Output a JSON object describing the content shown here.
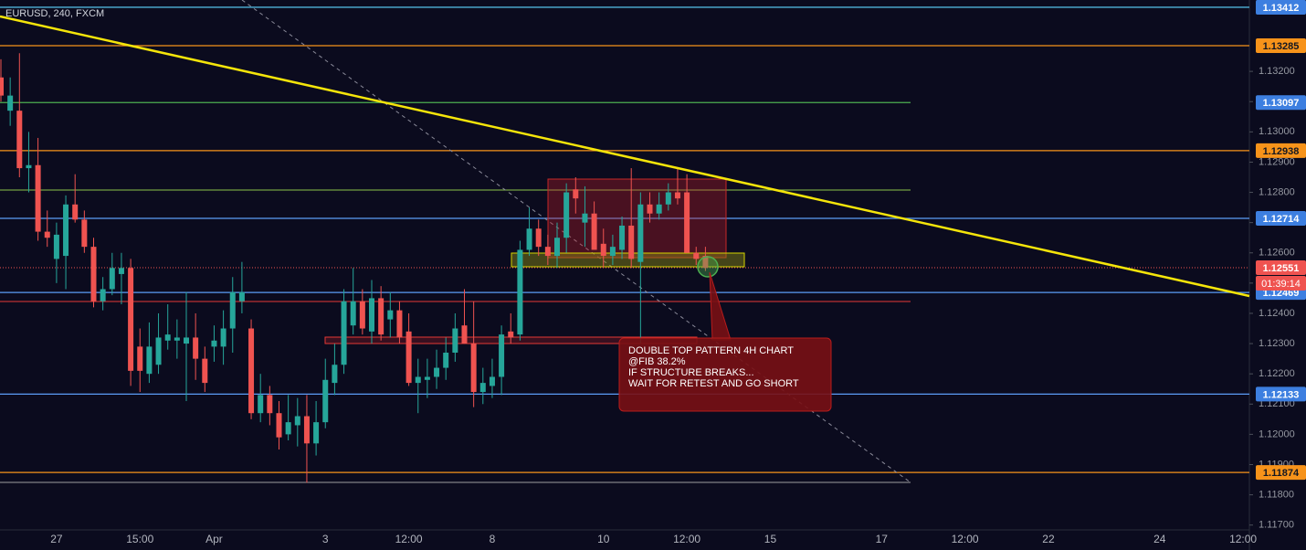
{
  "chart_data": {
    "type": "candlestick",
    "title": "EURUSD, 240, FXCM",
    "up_color": "#26a69a",
    "down_color": "#ef5350",
    "categories": [
      null,
      null,
      null,
      null,
      null,
      null,
      "27",
      null,
      null,
      null,
      null,
      null,
      null,
      null,
      null,
      "15:00",
      null,
      null,
      null,
      null,
      null,
      null,
      null,
      "Apr",
      null,
      null,
      null,
      null,
      null,
      null,
      null,
      null,
      null,
      null,
      null,
      "3",
      null,
      null,
      null,
      null,
      null,
      null,
      null,
      null,
      "12:00",
      null,
      null,
      null,
      null,
      null,
      null,
      null,
      null,
      "8",
      null,
      null,
      null,
      null,
      null,
      null,
      null,
      null,
      null,
      null,
      null,
      "10",
      null,
      null,
      null,
      null,
      null,
      null,
      null,
      null,
      "12:00",
      null,
      null,
      null,
      null,
      null,
      null,
      null,
      null,
      "15",
      null,
      null,
      null,
      null,
      null,
      null,
      null,
      null,
      null,
      null,
      null,
      "17",
      null,
      null,
      null,
      null,
      null,
      null,
      null,
      null,
      "12:00",
      null,
      null,
      null,
      null,
      null,
      null,
      null,
      null,
      "22",
      null,
      null,
      null,
      null,
      null,
      null,
      null,
      null,
      null,
      null,
      null,
      "24",
      null,
      null,
      null,
      null,
      null,
      null,
      null,
      null,
      "12:00"
    ],
    "open": [
      1.1318,
      1.1307,
      1.1307,
      1.1288,
      1.1289,
      1.1267,
      1.1258,
      1.1259,
      1.1276,
      1.1271,
      1.1262,
      1.1244,
      1.1248,
      1.1253,
      1.1255,
      1.1229,
      1.122,
      1.1223,
      1.1231,
      1.1231,
      1.123,
      1.1232,
      1.1225,
      1.1229,
      1.1229,
      1.1235,
      1.1244,
      1.1235,
      1.1207,
      1.1213,
      1.1207,
      1.12,
      1.1203,
      1.1206,
      1.1197,
      1.1204,
      1.1217,
      1.1223,
      1.1236,
      1.1244,
      1.1234,
      1.1245,
      1.1238,
      1.1241,
      1.1234,
      1.1217,
      1.1218,
      1.1219,
      1.1222,
      1.1227,
      1.1236,
      1.123,
      1.1214,
      1.1216,
      1.1219,
      1.1234,
      1.1233,
      1.1261,
      1.1268,
      1.1262,
      1.1259,
      1.1265,
      1.1281,
      1.127,
      1.1273,
      1.1263,
      1.1259,
      1.1261,
      1.1269,
      1.1257,
      1.1276,
      1.1273,
      1.1276,
      1.128,
      1.128,
      1.126,
      1.1259,
      null,
      null,
      null,
      null,
      null,
      null,
      null,
      null,
      null,
      null,
      null,
      null,
      null,
      null,
      null,
      null,
      null,
      null,
      null,
      null,
      null,
      null,
      null,
      null,
      null,
      null,
      null,
      null,
      null,
      null,
      null,
      null,
      null,
      null,
      null,
      null,
      null,
      null,
      null,
      null,
      null,
      null,
      null,
      null,
      null,
      null,
      null,
      null,
      null,
      null,
      null,
      null,
      null,
      null,
      null,
      null,
      null,
      null
    ],
    "high": [
      1.1324,
      1.1318,
      1.1326,
      1.13,
      1.1298,
      1.1274,
      1.127,
      1.1279,
      1.1286,
      1.1274,
      1.1265,
      1.1252,
      1.126,
      1.126,
      1.1258,
      1.1235,
      1.1237,
      1.124,
      1.1243,
      1.1238,
      1.1247,
      1.124,
      1.1229,
      1.1236,
      1.1241,
      1.1252,
      1.1257,
      1.1238,
      1.122,
      1.1216,
      1.1211,
      1.1213,
      1.1212,
      1.1213,
      1.1211,
      1.1225,
      1.123,
      1.1248,
      1.1255,
      1.1248,
      1.1251,
      1.1249,
      1.1247,
      1.1244,
      1.124,
      1.1225,
      1.1225,
      1.1228,
      1.1232,
      1.124,
      1.1248,
      1.1244,
      1.1222,
      1.1225,
      1.1236,
      1.124,
      1.1264,
      1.1275,
      1.1271,
      1.1266,
      1.127,
      1.1283,
      1.1285,
      1.1282,
      1.1277,
      1.1268,
      1.1266,
      1.1272,
      1.1288,
      1.128,
      1.128,
      1.128,
      1.1283,
      1.1288,
      1.1286,
      1.1262,
      1.1262,
      null,
      null,
      null,
      null,
      null,
      null,
      null,
      null,
      null,
      null,
      null,
      null,
      null,
      null,
      null,
      null,
      null,
      null,
      null,
      null,
      null,
      null,
      null,
      null,
      null,
      null,
      null,
      null,
      null,
      null,
      null,
      null,
      null,
      null,
      null,
      null,
      null,
      null,
      null,
      null,
      null,
      null,
      null,
      null,
      null,
      null,
      null,
      null,
      null,
      null,
      null,
      null,
      null,
      null,
      null,
      null,
      null,
      null
    ],
    "low": [
      1.131,
      1.1302,
      1.1285,
      1.128,
      1.1264,
      1.1262,
      1.125,
      1.1248,
      1.127,
      1.126,
      1.1242,
      1.1241,
      1.1246,
      1.1243,
      1.1216,
      1.1214,
      1.1217,
      1.122,
      1.1228,
      1.1225,
      1.1211,
      1.1218,
      1.1214,
      1.1224,
      1.1223,
      1.1227,
      1.124,
      1.1205,
      1.1204,
      1.1203,
      1.1195,
      1.1198,
      1.1196,
      1.1184,
      1.1193,
      1.1202,
      1.1213,
      1.122,
      1.1233,
      1.1233,
      1.123,
      1.1231,
      1.1232,
      1.123,
      1.1216,
      1.1207,
      1.1212,
      1.1215,
      1.1218,
      1.1224,
      1.123,
      1.1209,
      1.121,
      1.1212,
      1.1213,
      1.123,
      1.1231,
      1.1259,
      1.1259,
      1.1256,
      1.1255,
      1.126,
      1.1273,
      1.1262,
      1.1262,
      1.1255,
      1.1256,
      1.1258,
      1.1255,
      1.123,
      1.127,
      1.1271,
      1.1274,
      1.1276,
      1.126,
      1.1256,
      1.1254,
      null,
      null,
      null,
      null,
      null,
      null,
      null,
      null,
      null,
      null,
      null,
      null,
      null,
      null,
      null,
      null,
      null,
      null,
      null,
      null,
      null,
      null,
      null,
      null,
      null,
      null,
      null,
      null,
      null,
      null,
      null,
      null,
      null,
      null,
      null,
      null,
      null,
      null,
      null,
      null,
      null,
      null,
      null,
      null,
      null,
      null,
      null,
      null,
      null,
      null,
      null,
      null,
      null,
      null,
      null,
      null,
      null,
      null
    ],
    "close": [
      1.1312,
      1.1312,
      1.1288,
      1.1289,
      1.1267,
      1.1265,
      1.1266,
      1.1276,
      1.1271,
      1.1262,
      1.1244,
      1.1248,
      1.1255,
      1.1255,
      1.1221,
      1.1221,
      1.1229,
      1.1232,
      1.1233,
      1.1232,
      1.1232,
      1.1225,
      1.1217,
      1.1231,
      1.1235,
      1.1247,
      1.1247,
      1.1207,
      1.1213,
      1.1207,
      1.1199,
      1.1204,
      1.1206,
      1.1197,
      1.1204,
      1.1218,
      1.1223,
      1.1244,
      1.1244,
      1.1235,
      1.1245,
      1.1233,
      1.1241,
      1.1232,
      1.1217,
      1.1219,
      1.1219,
      1.1222,
      1.1227,
      1.1235,
      1.123,
      1.1214,
      1.1217,
      1.1219,
      1.1233,
      1.1232,
      1.1261,
      1.1268,
      1.1262,
      1.1259,
      1.1265,
      1.128,
      1.1278,
      1.1273,
      1.1261,
      1.1259,
      1.1262,
      1.1269,
      1.1258,
      1.1276,
      1.1273,
      1.1276,
      1.128,
      1.1278,
      1.126,
      1.1258,
      1.1255,
      null,
      null,
      null,
      null,
      null,
      null,
      null,
      null,
      null,
      null,
      null,
      null,
      null,
      null,
      null,
      null,
      null,
      null,
      null,
      null,
      null,
      null,
      null,
      null,
      null,
      null,
      null,
      null,
      null,
      null,
      null,
      null,
      null,
      null,
      null,
      null,
      null,
      null,
      null,
      null,
      null,
      null,
      null,
      null,
      null,
      null,
      null,
      null,
      null,
      null,
      null,
      null,
      null,
      null,
      null,
      null,
      null,
      null
    ],
    "ylim": [
      1.11684,
      1.13436
    ],
    "yticks": [
      {
        "value": 1.117,
        "label": "1.11700"
      },
      {
        "value": 1.118,
        "label": "1.11800"
      },
      {
        "value": 1.119,
        "label": "1.11900"
      },
      {
        "value": 1.12,
        "label": "1.12000"
      },
      {
        "value": 1.121,
        "label": "1.12100"
      },
      {
        "value": 1.122,
        "label": "1.12200"
      },
      {
        "value": 1.123,
        "label": "1.12300"
      },
      {
        "value": 1.124,
        "label": "1.12400"
      },
      {
        "value": 1.125,
        "label": "1.12500"
      },
      {
        "value": 1.126,
        "label": "1.12600"
      },
      {
        "value": 1.127,
        "label": "1.12700"
      },
      {
        "value": 1.128,
        "label": "1.12800"
      },
      {
        "value": 1.129,
        "label": "1.12900"
      },
      {
        "value": 1.13,
        "label": "1.13000"
      },
      {
        "value": 1.131,
        "label": "1.13100"
      },
      {
        "value": 1.132,
        "label": "1.13200"
      }
    ],
    "levels": [
      {
        "value": 1.13412,
        "color": "#4fb3d9",
        "label_color": "#3d7fe0",
        "full": true
      },
      {
        "value": 1.13285,
        "color": "#f7931a",
        "label_color": "#f7931a",
        "full": true
      },
      {
        "value": 1.13097,
        "color": "#4caf50",
        "label_color": "#3d7fe0",
        "full": false
      },
      {
        "value": 1.12938,
        "color": "#f7931a",
        "label_color": "#f7931a",
        "full": true
      },
      {
        "value": 1.12714,
        "color": "#5b9cf6",
        "label_color": "#3d7fe0",
        "full": true
      },
      {
        "value": 1.12469,
        "color": "#5b9cf6",
        "label_color": "#3d7fe0",
        "full": true
      },
      {
        "value": 1.12133,
        "color": "#5b9cf6",
        "label_color": "#3d7fe0",
        "full": true
      },
      {
        "value": 1.11874,
        "color": "#f7931a",
        "label_color": "#f7931a",
        "full": true
      }
    ],
    "last_price": 1.12551,
    "last_price_color": "#ef5350",
    "countdown": "01:39:14",
    "annotation": [
      "DOUBLE TOP PATTERN 4H CHART",
      "@FIB 38.2%",
      "IF STRUCTURE BREAKS...",
      "WAIT FOR RETEST AND GO SHORT"
    ]
  }
}
